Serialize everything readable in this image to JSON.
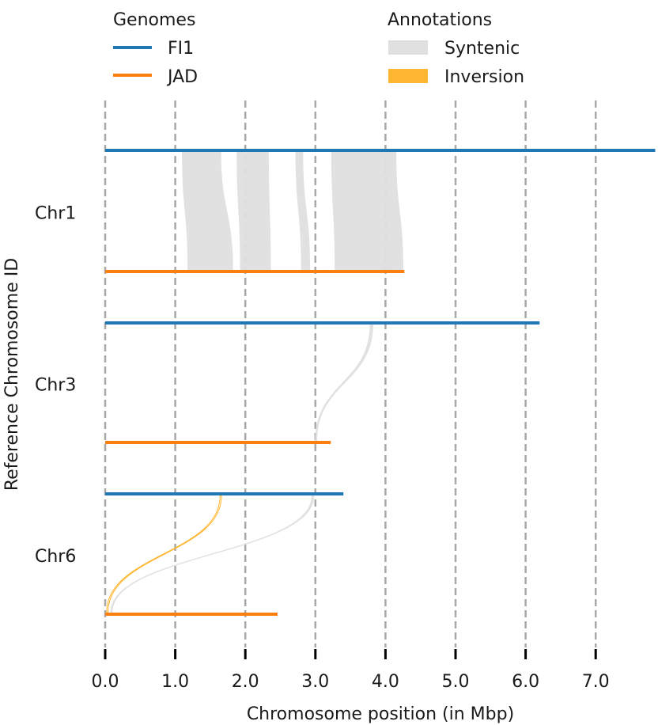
{
  "chart_data": {
    "type": "synteny",
    "xlabel": "Chromosome position (in Mbp)",
    "ylabel": "Reference Chromosome ID",
    "xlim": [
      0.0,
      7.85
    ],
    "xticks": [
      0.0,
      1.0,
      2.0,
      3.0,
      4.0,
      5.0,
      6.0,
      7.0
    ],
    "xtick_labels": [
      "0.0",
      "1.0",
      "2.0",
      "3.0",
      "4.0",
      "5.0",
      "6.0",
      "7.0"
    ],
    "grid": "vertical dashed at ticks",
    "legends": {
      "genomes": {
        "title": "Genomes",
        "items": [
          {
            "label": "FI1",
            "color": "#1f77b4"
          },
          {
            "label": "JAD",
            "color": "#ff7f0e"
          }
        ]
      },
      "annotations": {
        "title": "Annotations",
        "items": [
          {
            "label": "Syntenic",
            "color": "#e0e0e0"
          },
          {
            "label": "Inversion",
            "color": "#ffb631"
          }
        ]
      }
    },
    "chromosomes": [
      {
        "label": "Chr1",
        "FI1_length": 7.85,
        "JAD_length": 4.27
      },
      {
        "label": "Chr3",
        "FI1_length": 6.2,
        "JAD_length": 3.22
      },
      {
        "label": "Chr6",
        "FI1_length": 3.4,
        "JAD_length": 2.46
      }
    ],
    "regions": [
      {
        "chrom": "Chr1",
        "type": "syntenic",
        "FI1": [
          1.1,
          1.65
        ],
        "JAD": [
          1.18,
          1.82
        ]
      },
      {
        "chrom": "Chr1",
        "type": "syntenic",
        "FI1": [
          1.88,
          2.33
        ],
        "JAD": [
          1.93,
          2.36
        ]
      },
      {
        "chrom": "Chr1",
        "type": "syntenic",
        "FI1": [
          2.72,
          2.82
        ],
        "JAD": [
          2.8,
          2.92
        ]
      },
      {
        "chrom": "Chr1",
        "type": "syntenic",
        "FI1": [
          3.23,
          4.15
        ],
        "JAD": [
          3.28,
          4.25
        ]
      },
      {
        "chrom": "Chr3",
        "type": "syntenic",
        "FI1": [
          3.78,
          3.82
        ],
        "JAD": [
          3.0,
          3.02
        ]
      },
      {
        "chrom": "Chr6",
        "type": "inversion",
        "FI1": [
          1.64,
          1.66
        ],
        "JAD": [
          0.02,
          0.04
        ]
      },
      {
        "chrom": "Chr6",
        "type": "syntenic",
        "FI1": [
          2.95,
          2.98
        ],
        "JAD": [
          0.08,
          0.1
        ]
      }
    ]
  }
}
